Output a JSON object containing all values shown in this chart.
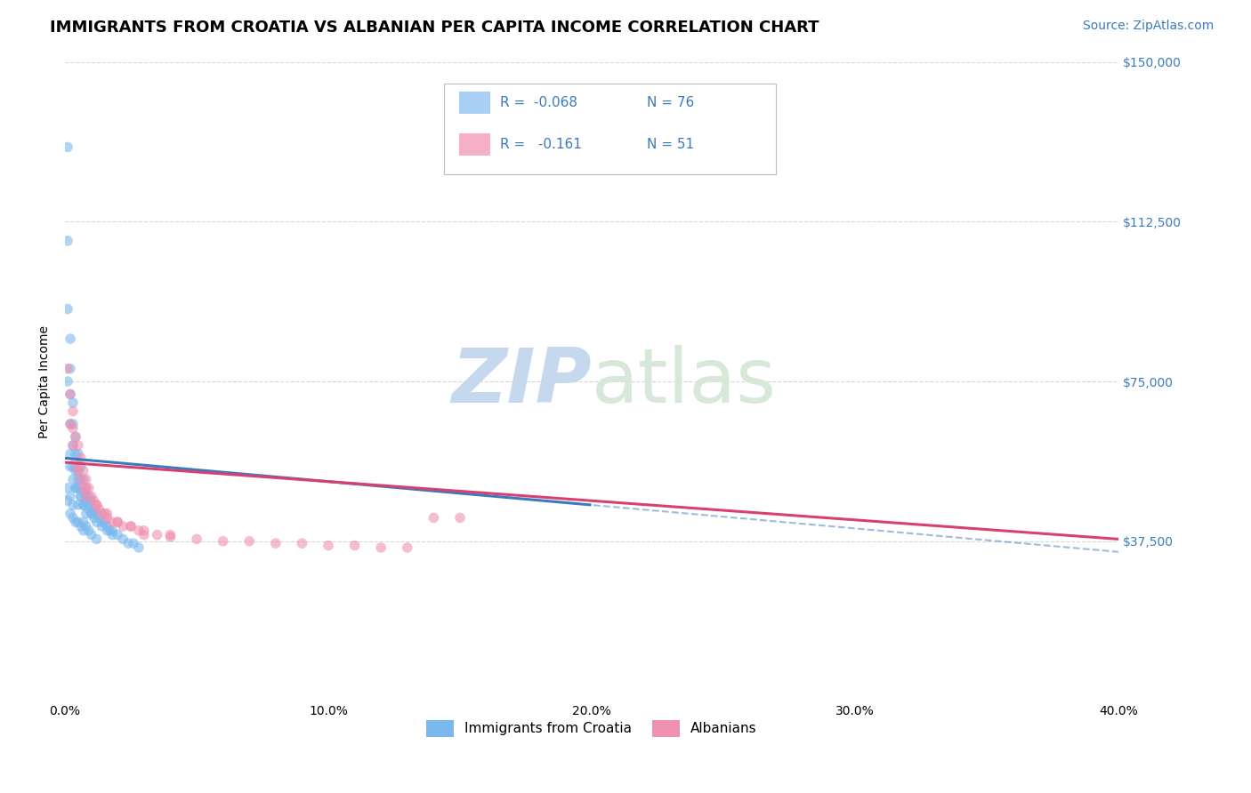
{
  "title": "IMMIGRANTS FROM CROATIA VS ALBANIAN PER CAPITA INCOME CORRELATION CHART",
  "source": "Source: ZipAtlas.com",
  "ylabel": "Per Capita Income",
  "xlim": [
    0,
    0.4
  ],
  "ylim": [
    0,
    150000
  ],
  "ytick_labels": [
    "$150,000",
    "$112,500",
    "$75,000",
    "$37,500"
  ],
  "ytick_values": [
    150000,
    112500,
    75000,
    37500
  ],
  "xtick_labels": [
    "0.0%",
    "10.0%",
    "20.0%",
    "30.0%",
    "40.0%"
  ],
  "xtick_values": [
    0.0,
    0.1,
    0.2,
    0.3,
    0.4
  ],
  "legend_r_n": [
    {
      "r": "R =  -0.068",
      "n": "N = 76",
      "swatch": "#a8d0f5"
    },
    {
      "r": "R =   -0.161",
      "n": "N = 51",
      "swatch": "#f5b0c8"
    }
  ],
  "legend_labels": [
    "Immigrants from Croatia",
    "Albanians"
  ],
  "croatia_color": "#7ab8ee",
  "albanian_color": "#f090b0",
  "croatia_line_color": "#3a7abf",
  "albanian_line_color": "#d94070",
  "croatia_line_intercept": 57000,
  "croatia_line_slope": -55000,
  "albanian_line_intercept": 56000,
  "albanian_line_slope": -45000,
  "croatia_line_solid_end": 0.2,
  "albanian_line_solid_end": 0.4,
  "watermark_zip": "ZIP",
  "watermark_atlas": "atlas",
  "watermark_color": "#c5d8ee",
  "title_fontsize": 13,
  "tick_fontsize": 10,
  "source_fontsize": 10,
  "croatia_x": [
    0.001,
    0.001,
    0.001,
    0.001,
    0.002,
    0.002,
    0.002,
    0.002,
    0.002,
    0.003,
    0.003,
    0.003,
    0.003,
    0.004,
    0.004,
    0.004,
    0.004,
    0.005,
    0.005,
    0.005,
    0.006,
    0.006,
    0.006,
    0.007,
    0.007,
    0.007,
    0.008,
    0.008,
    0.009,
    0.009,
    0.01,
    0.01,
    0.011,
    0.012,
    0.013,
    0.014,
    0.015,
    0.016,
    0.017,
    0.018,
    0.02,
    0.022,
    0.024,
    0.026,
    0.028,
    0.001,
    0.001,
    0.002,
    0.002,
    0.003,
    0.003,
    0.004,
    0.005,
    0.005,
    0.006,
    0.007,
    0.008,
    0.008,
    0.009,
    0.01,
    0.011,
    0.012,
    0.014,
    0.016,
    0.018,
    0.002,
    0.003,
    0.004,
    0.005,
    0.006,
    0.007,
    0.007,
    0.008,
    0.009,
    0.01,
    0.012
  ],
  "croatia_y": [
    130000,
    108000,
    92000,
    75000,
    85000,
    78000,
    72000,
    65000,
    58000,
    70000,
    65000,
    60000,
    55000,
    62000,
    58000,
    54000,
    50000,
    58000,
    54000,
    50000,
    55000,
    52000,
    48000,
    52000,
    49000,
    46000,
    50000,
    47000,
    48000,
    45000,
    47000,
    44000,
    45000,
    44000,
    43000,
    42000,
    42000,
    41000,
    40000,
    40000,
    39000,
    38000,
    37000,
    37000,
    36000,
    50000,
    47000,
    55000,
    48000,
    52000,
    46000,
    50000,
    52000,
    46000,
    48000,
    46000,
    48000,
    44000,
    46000,
    44000,
    43000,
    42000,
    41000,
    40000,
    39000,
    44000,
    43000,
    42000,
    42000,
    41000,
    42000,
    40000,
    41000,
    40000,
    39000,
    38000
  ],
  "albanian_x": [
    0.001,
    0.002,
    0.002,
    0.003,
    0.003,
    0.004,
    0.004,
    0.005,
    0.005,
    0.006,
    0.006,
    0.007,
    0.007,
    0.008,
    0.008,
    0.009,
    0.01,
    0.011,
    0.012,
    0.013,
    0.014,
    0.015,
    0.016,
    0.018,
    0.02,
    0.022,
    0.025,
    0.028,
    0.03,
    0.035,
    0.04,
    0.05,
    0.06,
    0.07,
    0.08,
    0.09,
    0.1,
    0.11,
    0.12,
    0.13,
    0.14,
    0.15,
    0.003,
    0.005,
    0.008,
    0.012,
    0.016,
    0.02,
    0.025,
    0.03,
    0.04
  ],
  "albanian_y": [
    78000,
    72000,
    65000,
    68000,
    60000,
    62000,
    56000,
    60000,
    54000,
    57000,
    52000,
    54000,
    50000,
    52000,
    48000,
    50000,
    48000,
    47000,
    46000,
    45000,
    44000,
    44000,
    43000,
    42000,
    42000,
    41000,
    41000,
    40000,
    39000,
    39000,
    38500,
    38000,
    37500,
    37500,
    37000,
    37000,
    36500,
    36500,
    36000,
    36000,
    43000,
    43000,
    64000,
    55000,
    50000,
    46000,
    44000,
    42000,
    41000,
    40000,
    39000
  ]
}
